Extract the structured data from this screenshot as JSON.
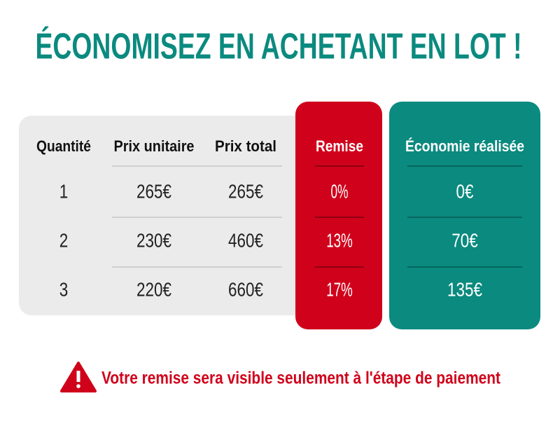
{
  "title": "ÉCONOMISEZ EN ACHETANT EN LOT !",
  "table": {
    "headers": [
      "Quantité",
      "Prix unitaire",
      "Prix total",
      "Remise",
      "Économie réalisée"
    ],
    "rows": [
      [
        "1",
        "265€",
        "265€",
        "0%",
        "0€"
      ],
      [
        "2",
        "230€",
        "460€",
        "13%",
        "70€"
      ],
      [
        "3",
        "220€",
        "660€",
        "17%",
        "135€"
      ]
    ]
  },
  "note": "Votre remise sera visible seulement à l'étape de paiement"
}
